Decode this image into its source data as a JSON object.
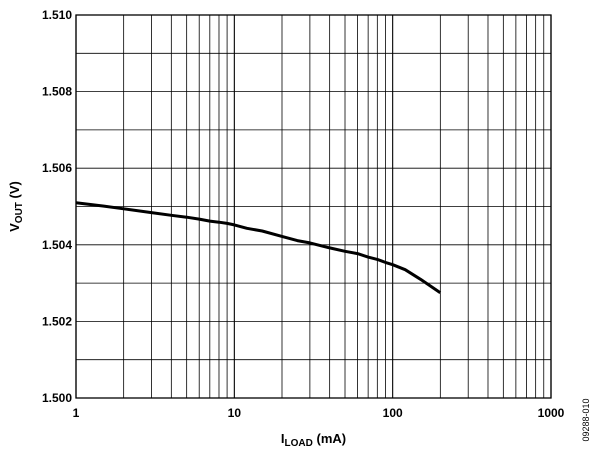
{
  "chart_data": {
    "type": "line",
    "title": "",
    "xlabel": {
      "main": "I",
      "sub": "LOAD",
      "unit": " (mA)"
    },
    "ylabel": {
      "main": "V",
      "sub": "OUT",
      "unit": " (V)"
    },
    "x_scale": "log",
    "xlim": [
      1,
      1000
    ],
    "ylim": [
      1.5,
      1.51
    ],
    "x_ticks": [
      1,
      10,
      100,
      1000
    ],
    "x_tick_labels": [
      "1",
      "10",
      "100",
      "1000"
    ],
    "y_ticks": [
      1.5,
      1.502,
      1.504,
      1.506,
      1.508,
      1.51
    ],
    "y_tick_labels": [
      "1.500",
      "1.502",
      "1.504",
      "1.506",
      "1.508",
      "1.510"
    ],
    "grid": true,
    "series": [
      {
        "color": "#000000",
        "x": [
          1,
          1.5,
          2,
          3,
          4,
          5,
          6,
          7,
          8,
          9,
          10,
          12,
          15,
          20,
          25,
          30,
          40,
          50,
          60,
          70,
          80,
          90,
          100,
          120,
          150,
          200
        ],
        "y": [
          1.5051,
          1.50501,
          1.50494,
          1.50484,
          1.50477,
          1.50472,
          1.50467,
          1.50462,
          1.50459,
          1.50456,
          1.50452,
          1.50443,
          1.50436,
          1.50422,
          1.50411,
          1.50405,
          1.50392,
          1.50383,
          1.50377,
          1.50368,
          1.50362,
          1.50354,
          1.50348,
          1.50335,
          1.5031,
          1.50275
        ]
      }
    ]
  },
  "figure_id": "09288-010"
}
